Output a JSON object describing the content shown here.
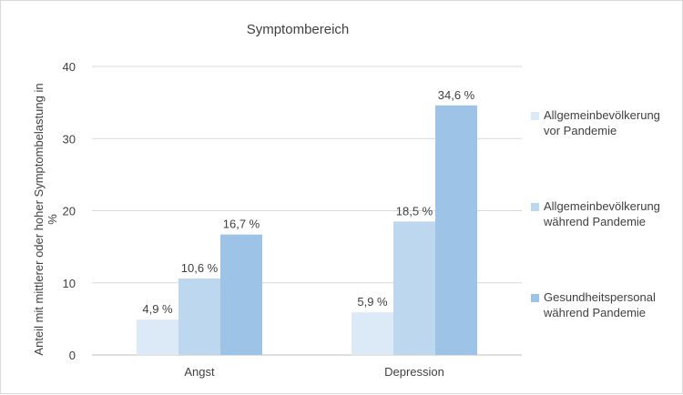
{
  "chart_data": {
    "type": "bar",
    "title": "Symptombereich",
    "ylabel": "Anteil mit mittlerer oder hoher Symptombelastung in %",
    "xlabel": "",
    "ylim": [
      0,
      40
    ],
    "yticks": [
      0,
      10,
      20,
      30,
      40
    ],
    "grid": true,
    "legend_position": "right",
    "categories": [
      "Angst",
      "Depression"
    ],
    "series": [
      {
        "name": "Allgemeinbevölkerung vor Pandemie",
        "values": [
          4.9,
          5.9
        ],
        "labels": [
          "4,9 %",
          "5,9 %"
        ],
        "color": "#dce9f6"
      },
      {
        "name": "Allgemeinbevölkerung während Pandemie",
        "values": [
          10.6,
          18.5
        ],
        "labels": [
          "10,6 %",
          "18,5 %"
        ],
        "color": "#bdd7ee"
      },
      {
        "name": "Gesundheitspersonal während Pandemie",
        "values": [
          16.7,
          34.6
        ],
        "labels": [
          "16,7 %",
          "34,6 %"
        ],
        "color": "#9dc3e6"
      }
    ]
  }
}
